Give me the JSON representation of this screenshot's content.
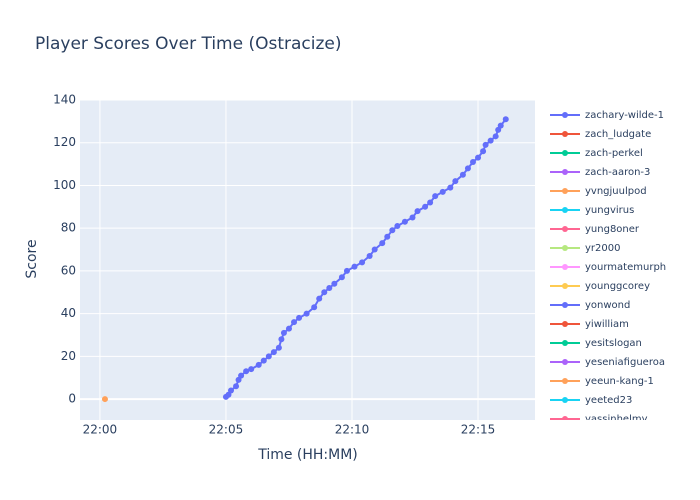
{
  "chart_data": {
    "type": "line",
    "title": "Player Scores Over Time (Ostracize)",
    "x_label": "Time (HH:MM)",
    "y_label": "Score",
    "xlim": [
      -0.79,
      17.26
    ],
    "ylim": [
      -9.8,
      140
    ],
    "xticks": [
      {
        "value": 0,
        "label": "22:00"
      },
      {
        "value": 5,
        "label": "22:05"
      },
      {
        "value": 10,
        "label": "22:10"
      },
      {
        "value": 15,
        "label": "22:15"
      }
    ],
    "yticks": [
      0,
      20,
      40,
      60,
      80,
      100,
      120,
      140
    ],
    "grid": true,
    "series": [
      {
        "name": "zachary-wilde-1",
        "color": "#636efa",
        "x": [
          5.0,
          5.1,
          5.2,
          5.4,
          5.5,
          5.6,
          5.8,
          6.0,
          6.3,
          6.5,
          6.7,
          6.9,
          7.1,
          7.2,
          7.3,
          7.5,
          7.7,
          7.9,
          8.2,
          8.5,
          8.7,
          8.9,
          9.1,
          9.3,
          9.6,
          9.8,
          10.1,
          10.4,
          10.7,
          10.9,
          11.2,
          11.4,
          11.6,
          11.8,
          12.1,
          12.4,
          12.6,
          12.9,
          13.1,
          13.3,
          13.6,
          13.9,
          14.1,
          14.4,
          14.6,
          14.8,
          15.0,
          15.2,
          15.3,
          15.5,
          15.7,
          15.8,
          15.9,
          16.1
        ],
        "values": [
          1,
          2,
          4,
          6,
          9,
          11,
          13,
          14,
          16,
          18,
          20,
          22,
          24,
          28,
          31,
          33,
          36,
          38,
          40,
          43,
          47,
          50,
          52,
          54,
          57,
          60,
          62,
          64,
          67,
          70,
          73,
          76,
          79,
          81,
          83,
          85,
          88,
          90,
          92,
          95,
          97,
          99,
          102,
          105,
          108,
          111,
          113,
          116,
          119,
          121,
          123,
          126,
          128,
          131
        ]
      },
      {
        "name": "zach_ludgate",
        "color": "#EF553B",
        "x": [],
        "values": []
      },
      {
        "name": "zach-perkel",
        "color": "#00cc96",
        "x": [],
        "values": []
      },
      {
        "name": "zach-aaron-3",
        "color": "#ab63fa",
        "x": [],
        "values": []
      },
      {
        "name": "yvngjuulpod",
        "color": "#FFA15A",
        "x": [
          0.2
        ],
        "values": [
          0
        ]
      },
      {
        "name": "yungvirus",
        "color": "#19d3f3",
        "x": [],
        "values": []
      },
      {
        "name": "yung8oner",
        "color": "#FF6692",
        "x": [],
        "values": []
      },
      {
        "name": "yr2000",
        "color": "#B6E880",
        "x": [],
        "values": []
      },
      {
        "name": "yourmatemurph",
        "color": "#FF97FF",
        "x": [],
        "values": []
      },
      {
        "name": "younggcorey",
        "color": "#FECB52",
        "x": [],
        "values": []
      },
      {
        "name": "yonwond",
        "color": "#636efa",
        "x": [],
        "values": []
      },
      {
        "name": "yiwilliam",
        "color": "#EF553B",
        "x": [],
        "values": []
      },
      {
        "name": "yesitslogan",
        "color": "#00cc96",
        "x": [],
        "values": []
      },
      {
        "name": "yeseniafigueroa",
        "color": "#ab63fa",
        "x": [],
        "values": []
      },
      {
        "name": "yeeun-kang-1",
        "color": "#FFA15A",
        "x": [],
        "values": []
      },
      {
        "name": "yeeted23",
        "color": "#19d3f3",
        "x": [],
        "values": []
      },
      {
        "name": "yassinhelmy",
        "color": "#FF6692",
        "x": [],
        "values": []
      }
    ]
  }
}
